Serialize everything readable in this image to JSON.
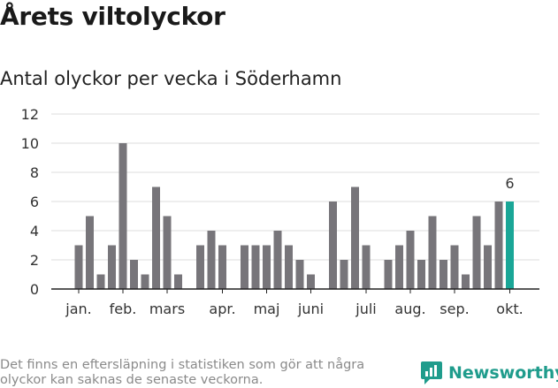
{
  "header": {
    "title": "Årets viltolyckor",
    "subtitle": "Antal olyckor per vecka i Söderhamn"
  },
  "footer": {
    "note": "Det finns en eftersläpning i statistiken som gör att några olyckor kan saknas de senaste veckorna.",
    "brand": "Newsworthy"
  },
  "colors": {
    "bar": "#77757a",
    "highlight": "#1aa697",
    "grid": "#dddddd",
    "axis": "#222222"
  },
  "chart_data": {
    "type": "bar",
    "title": "Antal olyckor per vecka i Söderhamn",
    "xlabel": "",
    "ylabel": "",
    "ylim": [
      0,
      12
    ],
    "yticks": [
      0,
      2,
      4,
      6,
      8,
      10,
      12
    ],
    "weeks": [
      1,
      2,
      3,
      4,
      5,
      6,
      7,
      8,
      9,
      10,
      11,
      12,
      13,
      14,
      15,
      16,
      17,
      18,
      19,
      20,
      21,
      22,
      23,
      24,
      25,
      26,
      27,
      28,
      29,
      30,
      31,
      32,
      33,
      34,
      35,
      36,
      37,
      38,
      39,
      40
    ],
    "values": [
      3,
      5,
      1,
      3,
      10,
      2,
      1,
      7,
      5,
      1,
      0,
      3,
      4,
      3,
      0,
      3,
      3,
      3,
      4,
      3,
      2,
      1,
      0,
      6,
      2,
      7,
      3,
      0,
      2,
      3,
      4,
      2,
      5,
      2,
      3,
      1,
      5,
      3,
      6,
      6
    ],
    "highlight_last": true,
    "last_label": "6",
    "month_labels": [
      {
        "label": "jan.",
        "week": 1
      },
      {
        "label": "feb.",
        "week": 5
      },
      {
        "label": "mars",
        "week": 9
      },
      {
        "label": "apr.",
        "week": 14
      },
      {
        "label": "maj",
        "week": 18
      },
      {
        "label": "juni",
        "week": 22
      },
      {
        "label": "juli",
        "week": 27
      },
      {
        "label": "aug.",
        "week": 31
      },
      {
        "label": "sep.",
        "week": 35
      },
      {
        "label": "okt.",
        "week": 40
      }
    ]
  }
}
